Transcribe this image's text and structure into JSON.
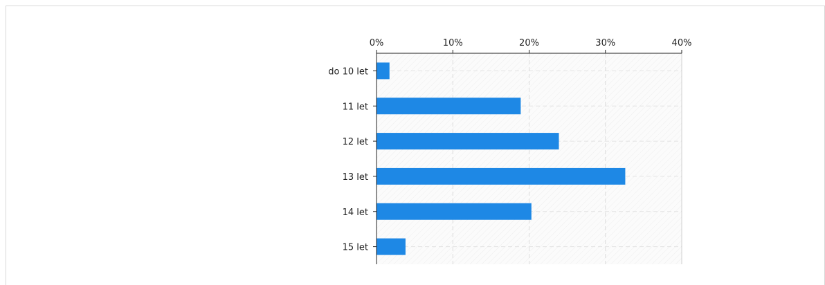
{
  "chart_data": {
    "type": "bar",
    "orientation": "horizontal",
    "categories": [
      "do 10 let",
      "11 let",
      "12 let",
      "13 let",
      "14 let",
      "15 let"
    ],
    "values": [
      1.7,
      18.9,
      23.9,
      32.6,
      20.3,
      3.8
    ],
    "unit": "%",
    "xlim": [
      0,
      40
    ],
    "xticks": [
      "0%",
      "10%",
      "20%",
      "30%",
      "40%"
    ],
    "bar_color": "#1e88e5",
    "grid": true,
    "legend": "none"
  }
}
